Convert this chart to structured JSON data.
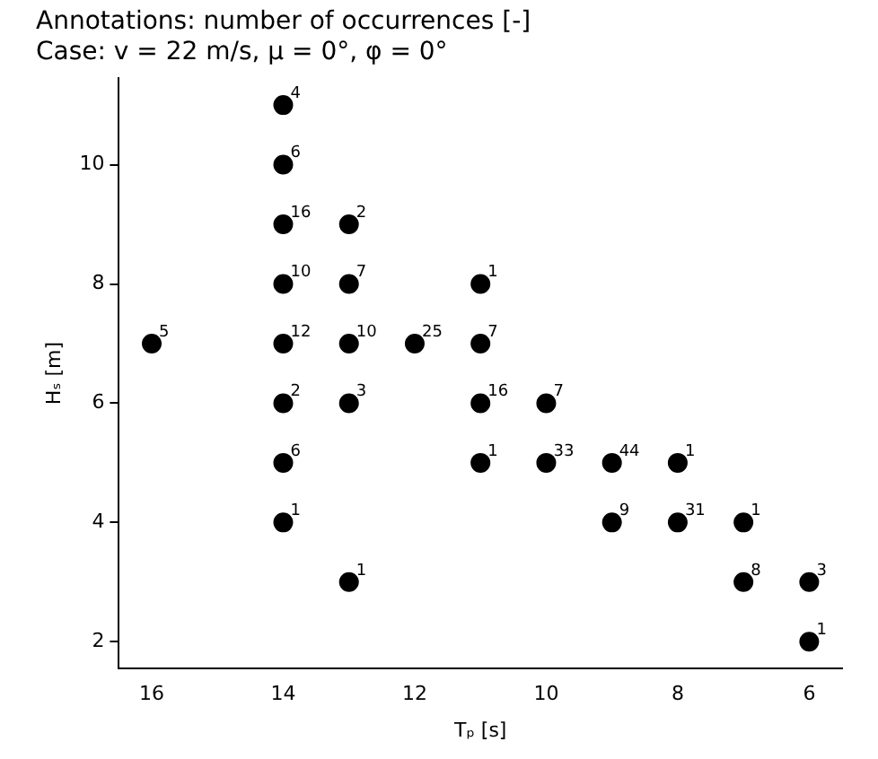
{
  "chart_data": {
    "type": "scatter",
    "title": "Annotations: number of occurrences [-]",
    "subtitle": "Case: v = 22 m/s, μ = 0°, φ = 0°",
    "xlabel": "Tₚ [s]",
    "ylabel": "Hₛ [m]",
    "x": [
      16,
      14,
      14,
      14,
      14,
      14,
      14,
      14,
      14,
      13,
      13,
      13,
      13,
      13,
      12,
      11,
      11,
      11,
      11,
      10,
      10,
      9,
      9,
      8,
      8,
      7,
      7,
      6,
      6
    ],
    "series": [
      {
        "color": "#000000",
        "values": [
          7,
          11,
          10,
          9,
          8,
          7,
          6,
          5,
          4,
          9,
          8,
          7,
          6,
          3,
          7,
          8,
          7,
          6,
          5,
          6,
          5,
          5,
          4,
          5,
          4,
          4,
          3,
          3,
          2
        ]
      }
    ],
    "annotations": [
      {
        "text": "5",
        "x": 16,
        "y": 7
      },
      {
        "text": "4",
        "x": 14,
        "y": 11
      },
      {
        "text": "6",
        "x": 14,
        "y": 10
      },
      {
        "text": "16",
        "x": 14,
        "y": 9
      },
      {
        "text": "10",
        "x": 14,
        "y": 8
      },
      {
        "text": "12",
        "x": 14,
        "y": 7
      },
      {
        "text": "2",
        "x": 14,
        "y": 6
      },
      {
        "text": "6",
        "x": 14,
        "y": 5
      },
      {
        "text": "1",
        "x": 14,
        "y": 4
      },
      {
        "text": "2",
        "x": 13,
        "y": 9
      },
      {
        "text": "7",
        "x": 13,
        "y": 8
      },
      {
        "text": "10",
        "x": 13,
        "y": 7
      },
      {
        "text": "3",
        "x": 13,
        "y": 6
      },
      {
        "text": "1",
        "x": 13,
        "y": 3
      },
      {
        "text": "25",
        "x": 12,
        "y": 7
      },
      {
        "text": "1",
        "x": 11,
        "y": 8
      },
      {
        "text": "7",
        "x": 11,
        "y": 7
      },
      {
        "text": "16",
        "x": 11,
        "y": 6
      },
      {
        "text": "1",
        "x": 11,
        "y": 5
      },
      {
        "text": "7",
        "x": 10,
        "y": 6
      },
      {
        "text": "33",
        "x": 10,
        "y": 5
      },
      {
        "text": "44",
        "x": 9,
        "y": 5
      },
      {
        "text": "9",
        "x": 9,
        "y": 4
      },
      {
        "text": "1",
        "x": 8,
        "y": 5
      },
      {
        "text": "31",
        "x": 8,
        "y": 4
      },
      {
        "text": "1",
        "x": 7,
        "y": 4
      },
      {
        "text": "8",
        "x": 7,
        "y": 3
      },
      {
        "text": "3",
        "x": 6,
        "y": 3
      },
      {
        "text": "1",
        "x": 6,
        "y": 2
      }
    ],
    "xlim": [
      16.5,
      5.5
    ],
    "xticks": [
      16,
      14,
      12,
      10,
      8,
      6
    ],
    "ylim": [
      1.55,
      11.45
    ],
    "yticks": [
      2,
      4,
      6,
      8,
      10
    ],
    "grid": false,
    "legend": false,
    "marker": "circle"
  }
}
